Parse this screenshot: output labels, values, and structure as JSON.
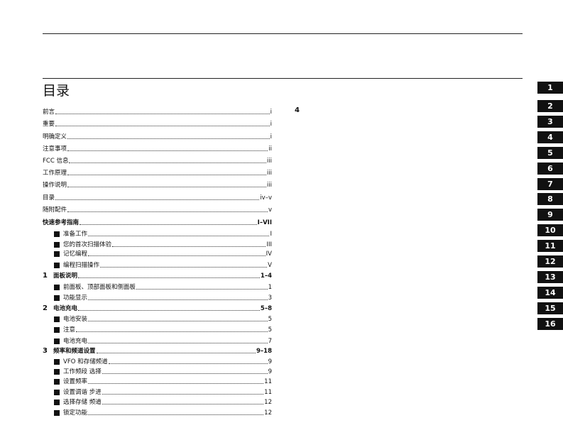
{
  "title": "目录",
  "toc": [
    {
      "label": "前言",
      "page": "i"
    },
    {
      "label": "重要",
      "page": "i"
    },
    {
      "label": "明确定义",
      "page": "i"
    },
    {
      "label": "注意事项",
      "page": "ii"
    },
    {
      "label": "FCC 信息",
      "page": "iii"
    },
    {
      "label": "工作原理",
      "page": "iii"
    },
    {
      "label": "操作说明",
      "page": "iii"
    },
    {
      "label": "目录",
      "page": "iv–v"
    },
    {
      "label": "随附配件",
      "page": "v"
    },
    {
      "label": "快速参考指南",
      "page": "I–VII",
      "bold": true
    },
    {
      "label": "准备工作",
      "page": "I",
      "sub": true
    },
    {
      "label": "您的首次扫描体验",
      "page": "III",
      "sub": true
    },
    {
      "label": "记忆编程",
      "page": "IV",
      "sub": true
    },
    {
      "label": "编程扫描操作",
      "page": "V",
      "sub": true
    },
    {
      "num": "1",
      "label": "面板说明",
      "page": "1–4",
      "bold": true
    },
    {
      "label": "前面板、顶部面板和侧面板",
      "page": "1",
      "sub": true
    },
    {
      "label": "功能显示",
      "page": "3",
      "sub": true
    },
    {
      "num": "2",
      "label": "电池充电",
      "page": "5–8",
      "bold": true
    },
    {
      "label": "电池安装",
      "page": "5",
      "sub": true
    },
    {
      "label": "注意",
      "page": "5",
      "sub": true
    },
    {
      "label": "电池充电",
      "page": "7",
      "sub": true
    },
    {
      "num": "3",
      "label": "频率和频道设置",
      "page": "9–18",
      "bold": true
    },
    {
      "label": "VFO 和存储频道",
      "page": "9",
      "sub": true
    },
    {
      "label": "工作频段 选择",
      "page": "9",
      "sub": true
    },
    {
      "label": "设置频率",
      "page": "11",
      "sub": true
    },
    {
      "label": "设置调谐 步进",
      "page": "11",
      "sub": true
    },
    {
      "label": "选择存储 频道",
      "page": "12",
      "sub": true
    },
    {
      "label": "锁定功能",
      "page": "12",
      "sub": true
    }
  ],
  "column2_heading": "4",
  "chapter_tabs": [
    "1",
    "2",
    "3",
    "4",
    "5",
    "6",
    "7",
    "8",
    "9",
    "10",
    "11",
    "12",
    "13",
    "14",
    "15",
    "16"
  ]
}
